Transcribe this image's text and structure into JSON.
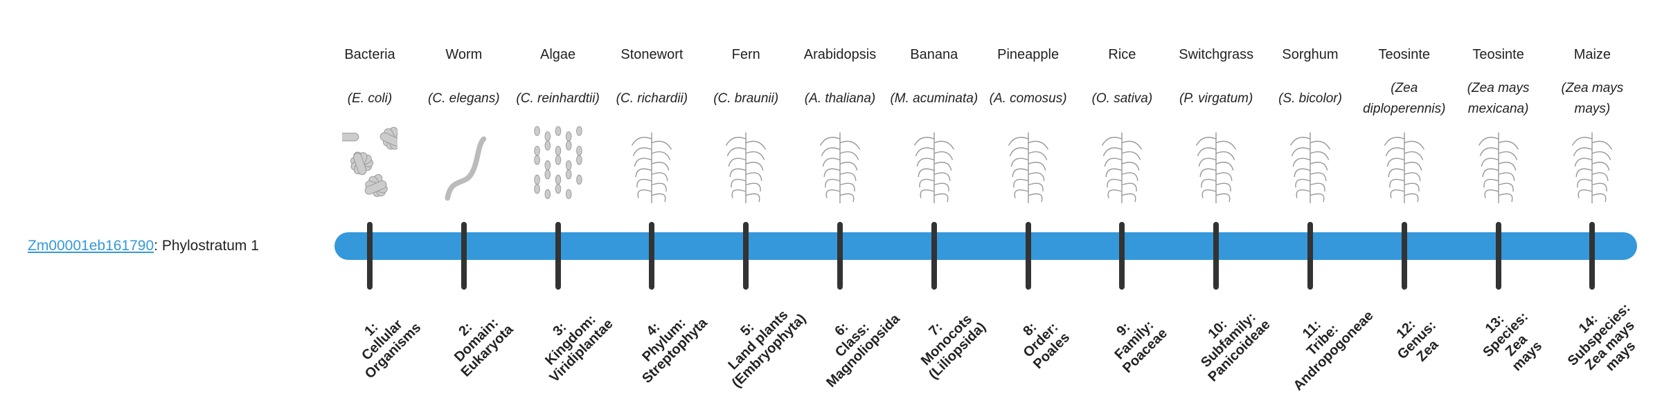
{
  "gene": {
    "id": "Zm00001eb161790",
    "suffix": ": Phylostratum 1"
  },
  "colors": {
    "bar": "#3498db",
    "tick": "#333333",
    "link": "#3498db"
  },
  "strata": [
    {
      "common": "Bacteria",
      "sci": "E. coli",
      "label": [
        "1:",
        "Cellular",
        "Organisms"
      ],
      "icon": "bacteria-image"
    },
    {
      "common": "Worm",
      "sci": "C. elegans",
      "label": [
        "2:",
        "Domain:",
        "Eukaryota"
      ],
      "icon": "worm-image"
    },
    {
      "common": "Algae",
      "sci": "C. reinhardtii",
      "label": [
        "3:",
        "Kingdom:",
        "Viridiplantae"
      ],
      "icon": "algae-image"
    },
    {
      "common": "Stonewort",
      "sci": "C. richardii",
      "label": [
        "4:",
        "Phylum:",
        "Streptophyta"
      ],
      "icon": "stonewort-image"
    },
    {
      "common": "Fern",
      "sci": "C. braunii",
      "label": [
        "5:",
        "Land plants",
        "(Embryophyta)"
      ],
      "icon": "fern-image"
    },
    {
      "common": "Arabidopsis",
      "sci": "A. thaliana",
      "label": [
        "6:",
        "Class:",
        "Magnoliopsida"
      ],
      "icon": "arabidopsis-image"
    },
    {
      "common": "Banana",
      "sci": "M. acuminata",
      "label": [
        "7:",
        "Monocots",
        "(Liliopsida)"
      ],
      "icon": "banana-image"
    },
    {
      "common": "Pineapple",
      "sci": "A. comosus",
      "label": [
        "8:",
        "Order:",
        "Poales"
      ],
      "icon": "pineapple-image"
    },
    {
      "common": "Rice",
      "sci": "O. sativa",
      "label": [
        "9:",
        "Family:",
        "Poaceae"
      ],
      "icon": "rice-image"
    },
    {
      "common": "Switchgrass",
      "sci": "P. virgatum",
      "label": [
        "10:",
        "Subfamily:",
        "Panicoideae"
      ],
      "icon": "switchgrass-image"
    },
    {
      "common": "Sorghum",
      "sci": "S. bicolor",
      "label": [
        "11:",
        "Tribe:",
        "Andropogoneae"
      ],
      "icon": "sorghum-image"
    },
    {
      "common": "Teosinte",
      "sci": "Zea diploperennis",
      "label": [
        "12:",
        "Genus:",
        "Zea"
      ],
      "icon": "teosinte-image"
    },
    {
      "common": "Teosinte",
      "sci": "Zea mays mexicana",
      "label": [
        "13:",
        "Species:",
        "Zea",
        "mays"
      ],
      "icon": "teosinte-mexicana-image"
    },
    {
      "common": "Maize",
      "sci": "Zea mays mays",
      "label": [
        "14:",
        "Subspecies:",
        "Zea mays",
        "mays"
      ],
      "icon": "maize-image"
    }
  ]
}
